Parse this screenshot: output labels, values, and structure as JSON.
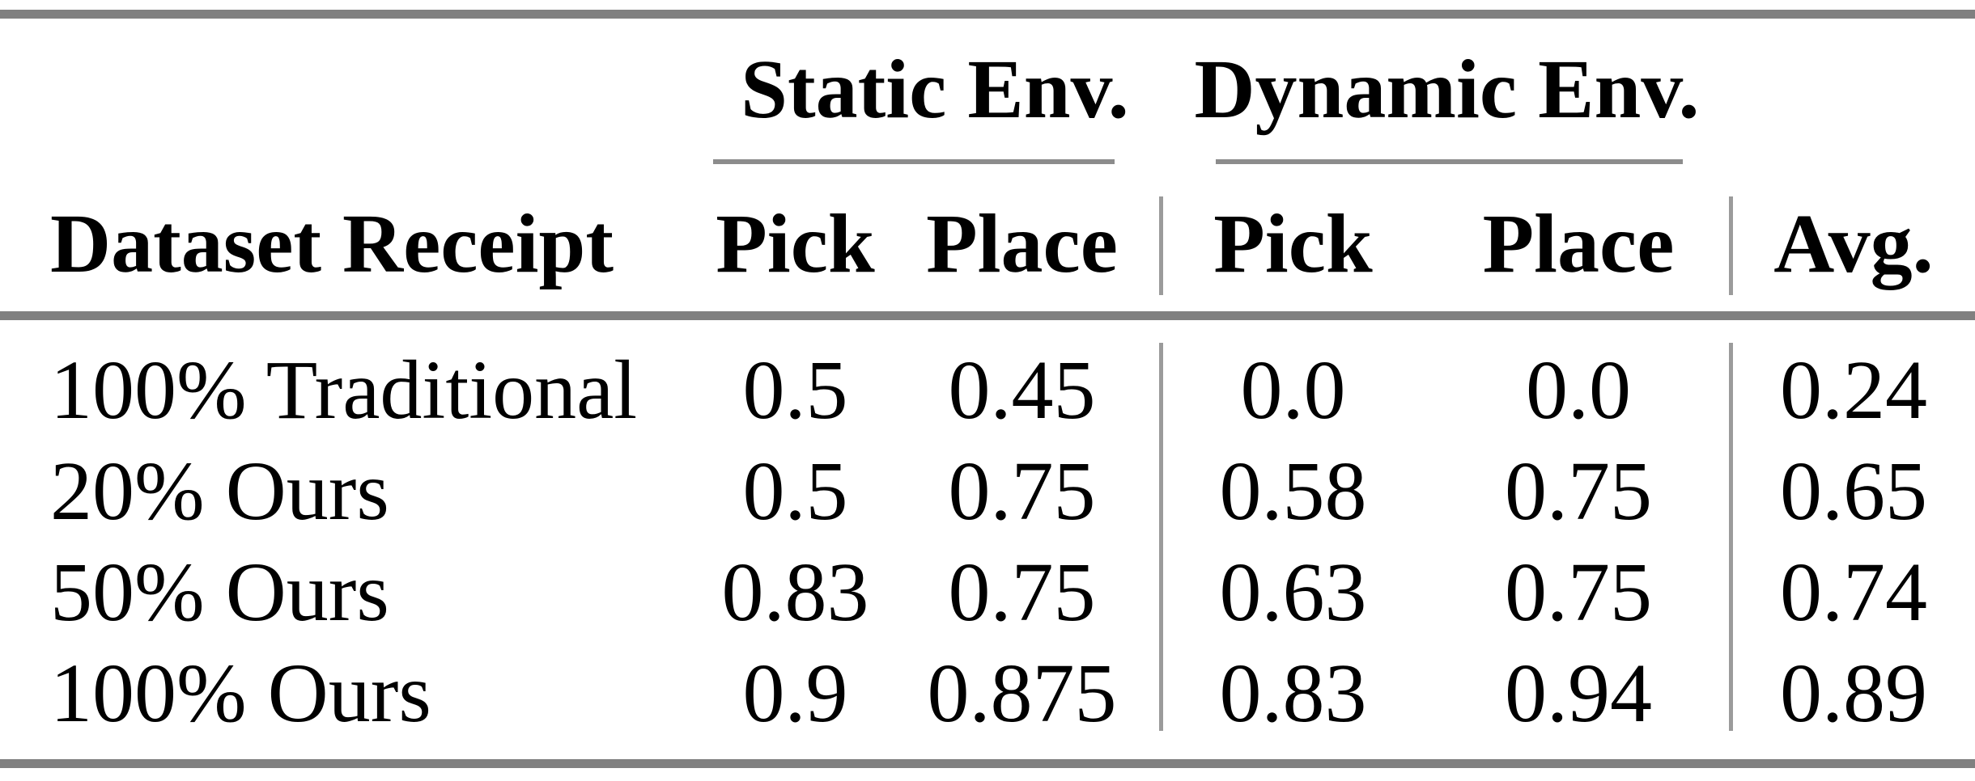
{
  "table": {
    "group_headers": [
      {
        "label": "Static Env."
      },
      {
        "label": "Dynamic Env."
      }
    ],
    "columns": {
      "dataset": "Dataset Receipt",
      "static_pick": "Pick",
      "static_place": "Place",
      "dynamic_pick": "Pick",
      "dynamic_place": "Place",
      "avg": "Avg."
    },
    "rows": [
      {
        "label": "100% Traditional",
        "static_pick": "0.5",
        "static_place": "0.45",
        "dynamic_pick": "0.0",
        "dynamic_place": "0.0",
        "avg": "0.24"
      },
      {
        "label": "20% Ours",
        "static_pick": "0.5",
        "static_place": "0.75",
        "dynamic_pick": "0.58",
        "dynamic_place": "0.75",
        "avg": "0.65"
      },
      {
        "label": "50% Ours",
        "static_pick": "0.83",
        "static_place": "0.75",
        "dynamic_pick": "0.63",
        "dynamic_place": "0.75",
        "avg": "0.74"
      },
      {
        "label": "100% Ours",
        "static_pick": "0.9",
        "static_place": "0.875",
        "dynamic_pick": "0.83",
        "dynamic_place": "0.94",
        "avg": "0.89"
      }
    ],
    "colors": {
      "rule": "#808080",
      "partial_rule": "#8c8c8c",
      "divider": "#9b9b9b",
      "text": "#000000",
      "background": "#ffffff"
    }
  },
  "chart_data": {
    "type": "table",
    "title": "",
    "column_groups": [
      "Static Env.",
      "Dynamic Env."
    ],
    "columns": [
      "Dataset Receipt",
      "Pick",
      "Place",
      "Pick",
      "Place",
      "Avg."
    ],
    "rows": [
      [
        "100% Traditional",
        0.5,
        0.45,
        0.0,
        0.0,
        0.24
      ],
      [
        "20% Ours",
        0.5,
        0.75,
        0.58,
        0.75,
        0.65
      ],
      [
        "50% Ours",
        0.83,
        0.75,
        0.63,
        0.75,
        0.74
      ],
      [
        "100% Ours",
        0.9,
        0.875,
        0.83,
        0.94,
        0.89
      ]
    ]
  }
}
